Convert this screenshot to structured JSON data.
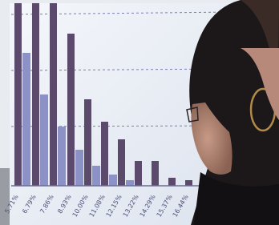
{
  "screen": {
    "axis_labels": [
      "5.71%",
      "6.79%",
      "7.86%",
      "8.93%",
      "10.00%",
      "11.08%",
      "12.15%",
      "13.22%",
      "14.29%",
      "15.37%",
      "16.44%"
    ]
  }
}
